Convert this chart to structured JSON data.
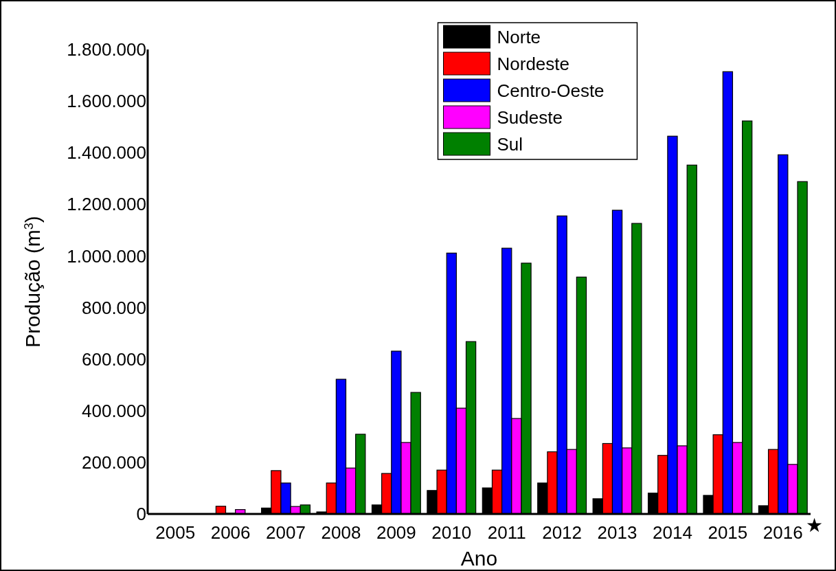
{
  "chart_data": {
    "type": "bar",
    "xlabel": "Ano",
    "ylabel": "Produção (m$^{3}$)",
    "categories": [
      "2005",
      "2006",
      "2007",
      "2008",
      "2009",
      "2010",
      "2011",
      "2012",
      "2013",
      "2014",
      "2015",
      "2016"
    ],
    "series": [
      {
        "name": "Norte",
        "color": "#000000",
        "values": [
          0,
          0,
          23000,
          8000,
          35000,
          91000,
          101000,
          120000,
          59000,
          81000,
          72000,
          32000
        ]
      },
      {
        "name": "Nordeste",
        "color": "#ff0000",
        "values": [
          0,
          30000,
          168000,
          120000,
          157000,
          170000,
          170000,
          241000,
          273000,
          227000,
          307000,
          250000
        ]
      },
      {
        "name": "Centro-Oeste",
        "color": "#0000ff",
        "values": [
          0,
          3000,
          120000,
          522000,
          631000,
          1011000,
          1030000,
          1155000,
          1177000,
          1464000,
          1714000,
          1392000
        ]
      },
      {
        "name": "Sudeste",
        "color": "#ff00ff",
        "values": [
          0,
          17000,
          29000,
          178000,
          277000,
          410000,
          370000,
          250000,
          256000,
          264000,
          277000,
          192000
        ]
      },
      {
        "name": "Sul",
        "color": "#008000",
        "values": [
          0,
          0,
          35000,
          309000,
          471000,
          668000,
          972000,
          918000,
          1126000,
          1352000,
          1523000,
          1288000
        ]
      }
    ],
    "ylim": [
      0,
      1800000
    ],
    "yticks": [
      0,
      {
        "value": 200000,
        "label": "200.000"
      },
      {
        "value": 400000,
        "label": "400.000"
      },
      {
        "value": 600000,
        "label": "600.000"
      },
      {
        "value": 800000,
        "label": "800.000"
      },
      {
        "value": 1000000,
        "label": "1.000.000"
      },
      {
        "value": 1200000,
        "label": "1.200.000"
      },
      {
        "value": 1400000,
        "label": "1.400.000"
      },
      {
        "value": 1600000,
        "label": "1.600.000"
      },
      {
        "value": 1800000,
        "label": "1.800.000"
      }
    ],
    "grid": false,
    "legend": "top",
    "annotations": [
      "★"
    ]
  }
}
